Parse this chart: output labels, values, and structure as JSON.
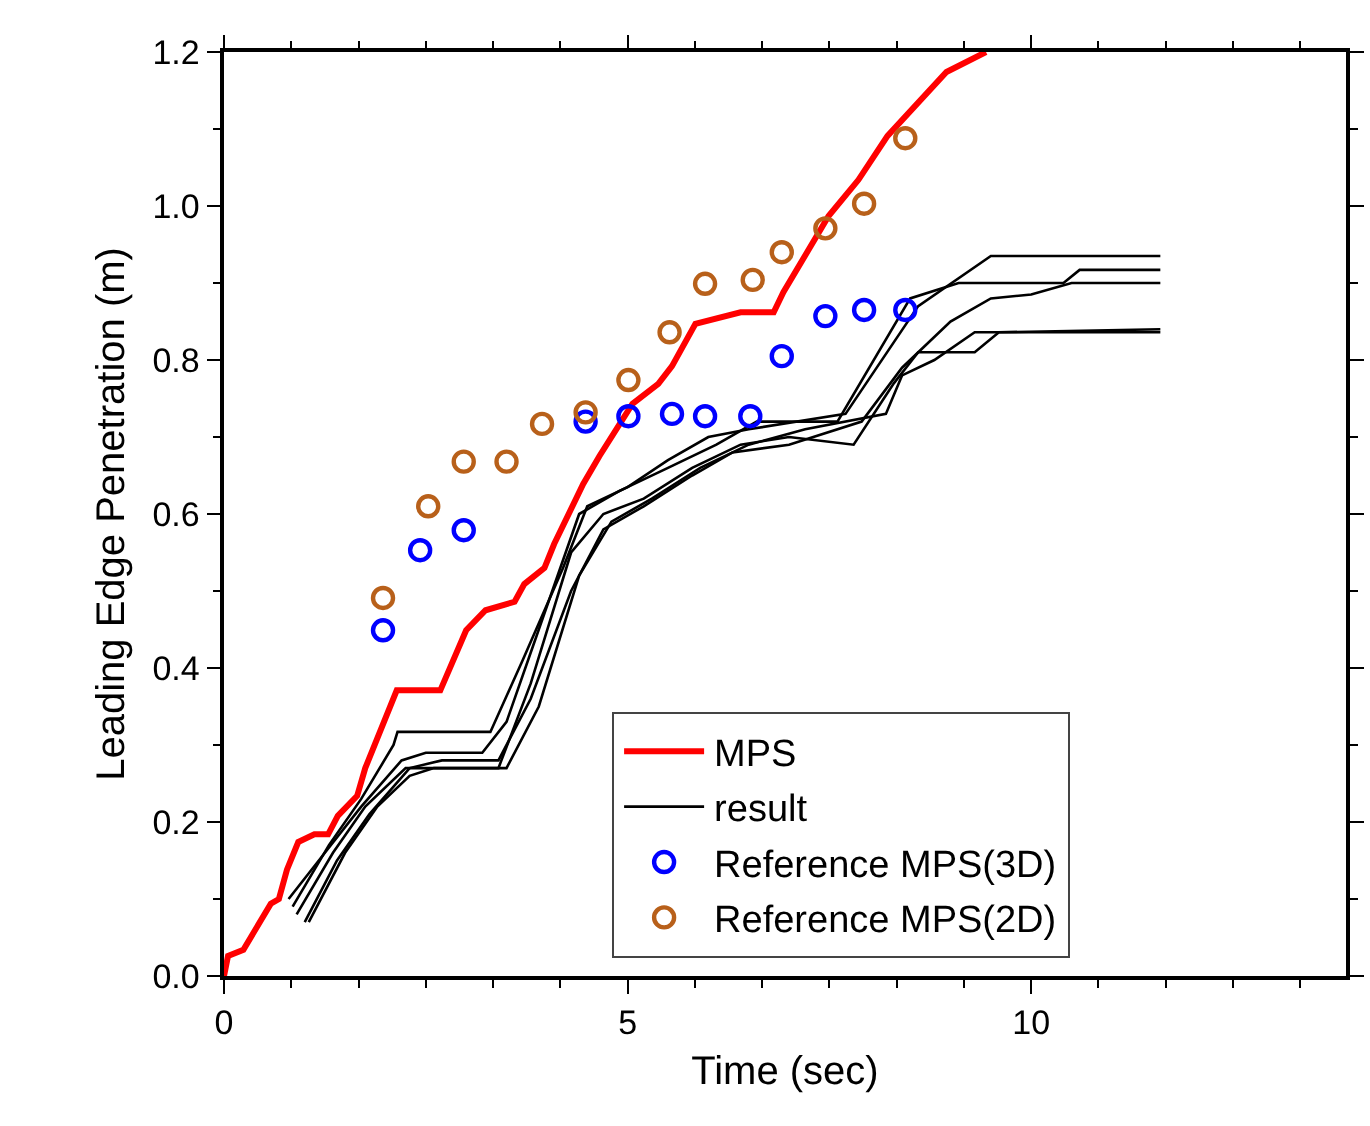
{
  "chart_data": {
    "type": "line",
    "xlabel": "Time (sec)",
    "ylabel": "Leading Edge Penetration (m)",
    "xlim": [
      0,
      13.9
    ],
    "ylim": [
      0,
      1.2
    ],
    "xticks": [
      {
        "value": 0,
        "label": "0"
      },
      {
        "value": 0.833,
        "label": null
      },
      {
        "value": 1.667,
        "label": null
      },
      {
        "value": 2.5,
        "label": null
      },
      {
        "value": 3.333,
        "label": null
      },
      {
        "value": 4.167,
        "label": null
      },
      {
        "value": 5,
        "label": "5"
      },
      {
        "value": 5.833,
        "label": null
      },
      {
        "value": 6.667,
        "label": null
      },
      {
        "value": 7.5,
        "label": null
      },
      {
        "value": 8.333,
        "label": null
      },
      {
        "value": 9.167,
        "label": null
      },
      {
        "value": 10,
        "label": "10"
      },
      {
        "value": 10.833,
        "label": null
      },
      {
        "value": 11.667,
        "label": null
      },
      {
        "value": 12.5,
        "label": null
      },
      {
        "value": 13.333,
        "label": null
      }
    ],
    "yticks": [
      {
        "value": 0,
        "label": "0.0"
      },
      {
        "value": 0.1,
        "label": null
      },
      {
        "value": 0.2,
        "label": "0.2"
      },
      {
        "value": 0.3,
        "label": null
      },
      {
        "value": 0.4,
        "label": "0.4"
      },
      {
        "value": 0.5,
        "label": null
      },
      {
        "value": 0.6,
        "label": "0.6"
      },
      {
        "value": 0.7,
        "label": null
      },
      {
        "value": 0.8,
        "label": "0.8"
      },
      {
        "value": 0.9,
        "label": null
      },
      {
        "value": 1.0,
        "label": "1.0"
      },
      {
        "value": 1.1,
        "label": null
      },
      {
        "value": 1.2,
        "label": "1.2"
      }
    ],
    "legend": "bottom right",
    "series": [
      {
        "name": "MPS",
        "color": "#ff0000",
        "x": [
          0,
          0.05,
          0.24,
          0.58,
          0.68,
          0.78,
          0.92,
          1.12,
          1.29,
          1.41,
          1.65,
          1.75,
          2.14,
          2.68,
          3.0,
          3.24,
          3.6,
          3.72,
          3.97,
          4.09,
          4.45,
          4.65,
          5.06,
          5.38,
          5.55,
          5.84,
          6.4,
          6.81,
          6.93,
          7.49,
          7.86,
          8.22,
          8.95,
          9.44
        ],
        "values": [
          0,
          0.026,
          0.034,
          0.094,
          0.1,
          0.138,
          0.174,
          0.184,
          0.184,
          0.208,
          0.234,
          0.27,
          0.371,
          0.371,
          0.449,
          0.475,
          0.486,
          0.509,
          0.53,
          0.561,
          0.639,
          0.675,
          0.743,
          0.769,
          0.792,
          0.847,
          0.862,
          0.862,
          0.888,
          0.987,
          1.034,
          1.091,
          1.174,
          1.2
        ]
      },
      {
        "name": "result",
        "color": "#000000",
        "x": [
          0.85,
          1.3,
          1.7,
          2.1,
          2.15,
          3.3,
          3.7,
          4.2,
          4.5,
          5.0,
          5.5,
          6.0,
          6.5,
          7.7,
          8.6,
          9.5,
          11.6
        ],
        "values": [
          0.09,
          0.17,
          0.23,
          0.3,
          0.317,
          0.317,
          0.41,
          0.53,
          0.61,
          0.635,
          0.67,
          0.7,
          0.71,
          0.73,
          0.87,
          0.935,
          0.935
        ]
      },
      {
        "color": "#000000",
        "x": [
          0.8,
          1.25,
          1.7,
          2.2,
          2.5,
          3.2,
          3.5,
          3.9,
          4.4,
          4.9,
          5.5,
          6.1,
          6.6,
          7.6,
          8.5,
          9.1,
          10.4,
          10.6,
          11.6
        ],
        "values": [
          0.1,
          0.16,
          0.22,
          0.28,
          0.29,
          0.29,
          0.33,
          0.45,
          0.6,
          0.63,
          0.66,
          0.69,
          0.72,
          0.72,
          0.88,
          0.9,
          0.9,
          0.917,
          0.917
        ]
      },
      {
        "color": "#000000",
        "x": [
          1.0,
          1.4,
          1.8,
          2.3,
          2.7,
          3.4,
          3.8,
          4.3,
          4.7,
          5.2,
          5.8,
          6.3,
          7.0,
          7.9,
          8.4,
          9.0,
          9.5,
          10.0,
          10.5,
          11.6
        ],
        "values": [
          0.07,
          0.15,
          0.21,
          0.27,
          0.28,
          0.28,
          0.36,
          0.5,
          0.58,
          0.61,
          0.65,
          0.68,
          0.69,
          0.72,
          0.79,
          0.85,
          0.88,
          0.885,
          0.9,
          0.9
        ]
      },
      {
        "color": "#000000",
        "x": [
          0.9,
          1.35,
          1.75,
          2.25,
          2.6,
          3.5,
          3.9,
          4.4,
          4.8,
          5.3,
          5.9,
          6.5,
          7.2,
          8.2,
          8.4,
          8.8,
          9.3,
          11.6
        ],
        "values": [
          0.08,
          0.16,
          0.22,
          0.27,
          0.27,
          0.27,
          0.35,
          0.52,
          0.59,
          0.62,
          0.66,
          0.69,
          0.71,
          0.73,
          0.78,
          0.8,
          0.836,
          0.836
        ]
      },
      {
        "color": "#000000",
        "x": [
          1.05,
          1.5,
          1.9,
          2.3,
          2.6,
          3.4,
          3.8,
          4.3,
          4.7,
          5.2,
          5.8,
          6.4,
          7.0,
          7.8,
          8.3,
          8.6,
          9.3,
          9.6,
          11.6
        ],
        "values": [
          0.07,
          0.16,
          0.22,
          0.26,
          0.27,
          0.27,
          0.38,
          0.55,
          0.6,
          0.62,
          0.66,
          0.69,
          0.7,
          0.69,
          0.77,
          0.81,
          0.81,
          0.836,
          0.84
        ]
      },
      {
        "name": "Reference MPS(3D)",
        "type": "scatter",
        "marker": "circle",
        "color": "#0000ff",
        "x": [
          1.97,
          2.43,
          2.97,
          4.48,
          5.01,
          5.55,
          5.96,
          6.52,
          6.91,
          7.45,
          7.93,
          8.44
        ],
        "values": [
          0.449,
          0.553,
          0.579,
          0.72,
          0.727,
          0.73,
          0.727,
          0.727,
          0.805,
          0.857,
          0.865,
          0.865
        ]
      },
      {
        "name": "Reference MPS(2D)",
        "type": "scatter",
        "marker": "circle",
        "color": "#b8601a",
        "x": [
          1.97,
          2.53,
          2.97,
          3.5,
          3.94,
          4.48,
          5.01,
          5.52,
          5.96,
          6.55,
          6.91,
          7.45,
          7.93,
          8.44
        ],
        "values": [
          0.491,
          0.61,
          0.668,
          0.668,
          0.717,
          0.732,
          0.774,
          0.836,
          0.899,
          0.904,
          0.94,
          0.971,
          1.003,
          1.088
        ]
      }
    ]
  }
}
